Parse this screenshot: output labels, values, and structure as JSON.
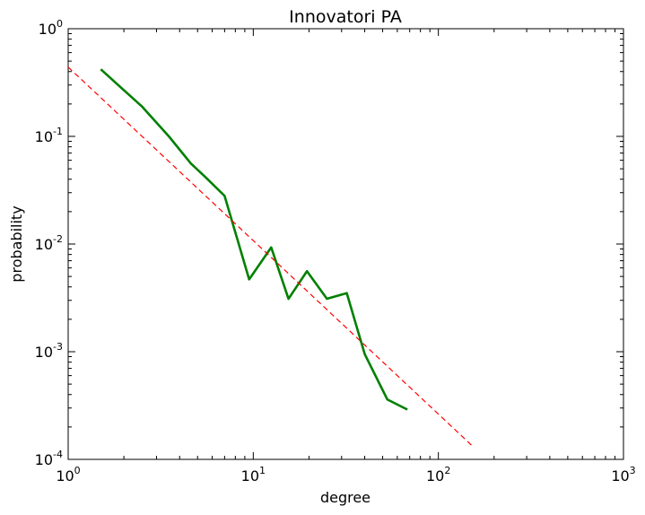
{
  "chart_data": {
    "type": "line",
    "title": "Innovatori PA",
    "xlabel": "degree",
    "ylabel": "probability",
    "xscale": "log",
    "yscale": "log",
    "xlim": [
      1,
      1000
    ],
    "ylim": [
      0.0001,
      1
    ],
    "grid": false,
    "legend": "none",
    "x_ticks": [
      {
        "value": 1,
        "base": "10",
        "exp": "0"
      },
      {
        "value": 10,
        "base": "10",
        "exp": "1"
      },
      {
        "value": 100,
        "base": "10",
        "exp": "2"
      },
      {
        "value": 1000,
        "base": "10",
        "exp": "3"
      }
    ],
    "y_ticks": [
      {
        "value": 0.0001,
        "base": "10",
        "exp": "-4"
      },
      {
        "value": 0.001,
        "base": "10",
        "exp": "-3"
      },
      {
        "value": 0.01,
        "base": "10",
        "exp": "-2"
      },
      {
        "value": 0.1,
        "base": "10",
        "exp": "-1"
      },
      {
        "value": 1,
        "base": "10",
        "exp": "0"
      }
    ],
    "series": [
      {
        "style": "solid",
        "color": "#008000",
        "x": [
          1.5,
          2.5,
          3.5,
          4.6,
          5.5,
          7.0,
          9.5,
          12.5,
          15.5,
          19.5,
          25.0,
          32.0,
          40.0,
          53.0,
          68.0
        ],
        "y": [
          0.42,
          0.19,
          0.1,
          0.056,
          0.042,
          0.028,
          0.0047,
          0.0093,
          0.0031,
          0.0056,
          0.0031,
          0.0035,
          0.00095,
          0.00036,
          0.00029
        ]
      },
      {
        "style": "dashed",
        "color": "#ff0000",
        "x": [
          1.0,
          155.0
        ],
        "y": [
          0.44,
          0.00013
        ]
      }
    ]
  }
}
